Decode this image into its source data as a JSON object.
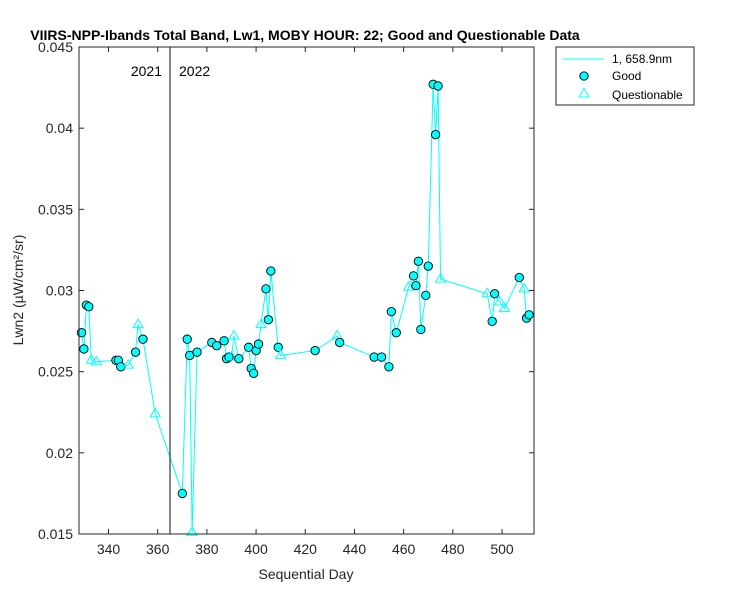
{
  "chart_data": {
    "type": "line",
    "title": "VIIRS-NPP-Ibands Total Band, Lw1, MOBY HOUR: 22;  Good and Questionable Data",
    "xlabel": "Sequential Day",
    "ylabel": "Lwn2 (µW/cm²/sr)",
    "xlim": [
      328,
      513
    ],
    "ylim": [
      0.015,
      0.045
    ],
    "xticks": [
      340,
      360,
      380,
      400,
      420,
      440,
      460,
      480,
      500
    ],
    "xtick_labels": [
      "340",
      "360",
      "380",
      "400",
      "420",
      "440",
      "460",
      "480",
      "500"
    ],
    "yticks": [
      0.015,
      0.02,
      0.025,
      0.03,
      0.035,
      0.04,
      0.045
    ],
    "ytick_labels": [
      "0.015",
      "0.02",
      "0.025",
      "0.03",
      "0.035",
      "0.04",
      "0.045"
    ],
    "grid": false,
    "legend_position": "outside-top-right",
    "colors": {
      "series": "#00ffff",
      "marker_fill": "#00ffff",
      "marker_edge": "#000000",
      "divider": "#333333"
    },
    "divider": {
      "x": 365,
      "left_label": "2021",
      "right_label": "2022"
    },
    "legend": [
      {
        "label": "1, 658.9nm",
        "kind": "line"
      },
      {
        "label": "Good",
        "kind": "good"
      },
      {
        "label": "Questionable",
        "kind": "questionable"
      }
    ],
    "series": [
      {
        "name": "1, 658.9nm",
        "points": [
          {
            "x": 329,
            "y": 0.0274,
            "q": "good"
          },
          {
            "x": 330,
            "y": 0.0264,
            "q": "good"
          },
          {
            "x": 331,
            "y": 0.0291,
            "q": "good"
          },
          {
            "x": 332,
            "y": 0.029,
            "q": "good"
          },
          {
            "x": 333,
            "y": 0.0257,
            "q": "questionable"
          },
          {
            "x": 335,
            "y": 0.0256,
            "q": "questionable"
          },
          {
            "x": 343,
            "y": 0.0257,
            "q": "good"
          },
          {
            "x": 344,
            "y": 0.0257,
            "q": "good"
          },
          {
            "x": 345,
            "y": 0.0253,
            "q": "good"
          },
          {
            "x": 348,
            "y": 0.0254,
            "q": "questionable"
          },
          {
            "x": 351,
            "y": 0.0262,
            "q": "good"
          },
          {
            "x": 352,
            "y": 0.0279,
            "q": "questionable"
          },
          {
            "x": 354,
            "y": 0.027,
            "q": "good"
          },
          {
            "x": 359,
            "y": 0.0224,
            "q": "questionable"
          },
          {
            "x": 370,
            "y": 0.0175,
            "q": "good"
          },
          {
            "x": 372,
            "y": 0.027,
            "q": "good"
          },
          {
            "x": 373,
            "y": 0.026,
            "q": "good"
          },
          {
            "x": 374,
            "y": 0.0151,
            "q": "questionable"
          },
          {
            "x": 376,
            "y": 0.0262,
            "q": "good"
          },
          {
            "x": 382,
            "y": 0.0268,
            "q": "good"
          },
          {
            "x": 384,
            "y": 0.0266,
            "q": "good"
          },
          {
            "x": 387,
            "y": 0.0269,
            "q": "good"
          },
          {
            "x": 388,
            "y": 0.0258,
            "q": "good"
          },
          {
            "x": 389,
            "y": 0.0259,
            "q": "good"
          },
          {
            "x": 390,
            "y": 0.0259,
            "q": "questionable"
          },
          {
            "x": 391,
            "y": 0.0272,
            "q": "questionable"
          },
          {
            "x": 393,
            "y": 0.0258,
            "q": "good"
          },
          {
            "x": 397,
            "y": 0.0265,
            "q": "good"
          },
          {
            "x": 398,
            "y": 0.0252,
            "q": "good"
          },
          {
            "x": 399,
            "y": 0.0249,
            "q": "good"
          },
          {
            "x": 400,
            "y": 0.0263,
            "q": "good"
          },
          {
            "x": 401,
            "y": 0.0267,
            "q": "good"
          },
          {
            "x": 402,
            "y": 0.0279,
            "q": "questionable"
          },
          {
            "x": 404,
            "y": 0.0301,
            "q": "good"
          },
          {
            "x": 405,
            "y": 0.0282,
            "q": "good"
          },
          {
            "x": 406,
            "y": 0.0312,
            "q": "good"
          },
          {
            "x": 409,
            "y": 0.0265,
            "q": "good"
          },
          {
            "x": 410,
            "y": 0.026,
            "q": "questionable"
          },
          {
            "x": 424,
            "y": 0.0263,
            "q": "good"
          },
          {
            "x": 433,
            "y": 0.0272,
            "q": "questionable"
          },
          {
            "x": 434,
            "y": 0.0268,
            "q": "good"
          },
          {
            "x": 448,
            "y": 0.0259,
            "q": "good"
          },
          {
            "x": 451,
            "y": 0.0259,
            "q": "good"
          },
          {
            "x": 454,
            "y": 0.0253,
            "q": "good"
          },
          {
            "x": 455,
            "y": 0.0287,
            "q": "good"
          },
          {
            "x": 457,
            "y": 0.0274,
            "q": "good"
          },
          {
            "x": 462,
            "y": 0.0302,
            "q": "questionable"
          },
          {
            "x": 464,
            "y": 0.0309,
            "q": "good"
          },
          {
            "x": 465,
            "y": 0.0303,
            "q": "good"
          },
          {
            "x": 466,
            "y": 0.0318,
            "q": "good"
          },
          {
            "x": 467,
            "y": 0.0276,
            "q": "good"
          },
          {
            "x": 469,
            "y": 0.0297,
            "q": "good"
          },
          {
            "x": 470,
            "y": 0.0315,
            "q": "good"
          },
          {
            "x": 472,
            "y": 0.0427,
            "q": "good"
          },
          {
            "x": 473,
            "y": 0.0396,
            "q": "good"
          },
          {
            "x": 474,
            "y": 0.0426,
            "q": "good"
          },
          {
            "x": 475,
            "y": 0.0307,
            "q": "questionable"
          },
          {
            "x": 494,
            "y": 0.0298,
            "q": "questionable"
          },
          {
            "x": 496,
            "y": 0.0281,
            "q": "good"
          },
          {
            "x": 497,
            "y": 0.0298,
            "q": "good"
          },
          {
            "x": 499,
            "y": 0.0293,
            "q": "questionable"
          },
          {
            "x": 501,
            "y": 0.0289,
            "q": "questionable"
          },
          {
            "x": 507,
            "y": 0.0308,
            "q": "good"
          },
          {
            "x": 509,
            "y": 0.0301,
            "q": "questionable"
          },
          {
            "x": 510,
            "y": 0.0283,
            "q": "good"
          },
          {
            "x": 511,
            "y": 0.0285,
            "q": "good"
          }
        ]
      }
    ]
  }
}
